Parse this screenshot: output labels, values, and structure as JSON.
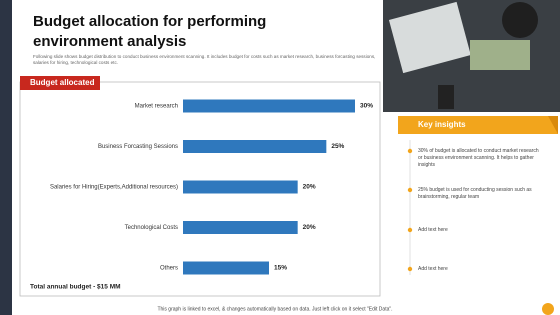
{
  "slide": {
    "title": "Budget allocation for performing environment analysis",
    "subtitle": "Following slide shows budget distribution to conduct business environment scanning. It includes budget for costs such as market research, business forcasting sessions, salaries for hiring, technological costs etc.",
    "footer": "This graph is linked to excel, & changes automatically based on data. Just left click on it select \"Edit Data\"."
  },
  "chart_data": {
    "type": "hbar",
    "title": "Budget allocated",
    "categories": [
      "Market research",
      "Business Forcasting Sessions",
      "Salaries for Hiring(Experts,Additional resources)",
      "Technological Costs",
      "Others"
    ],
    "values": [
      30,
      25,
      20,
      20,
      15
    ],
    "value_labels": [
      "30%",
      "25%",
      "20%",
      "20%",
      "15%"
    ],
    "color": "#2f78bd",
    "note": "Total annual budget - $15 MM"
  },
  "insights": {
    "title": "Key insights",
    "items": [
      "30% of budget is allocated to conduct market research or business environment scanning. It helps to gather insights",
      "25% budget is used for conducting session such as brainstorming, regular team",
      "Add text here",
      "Add text here"
    ]
  }
}
